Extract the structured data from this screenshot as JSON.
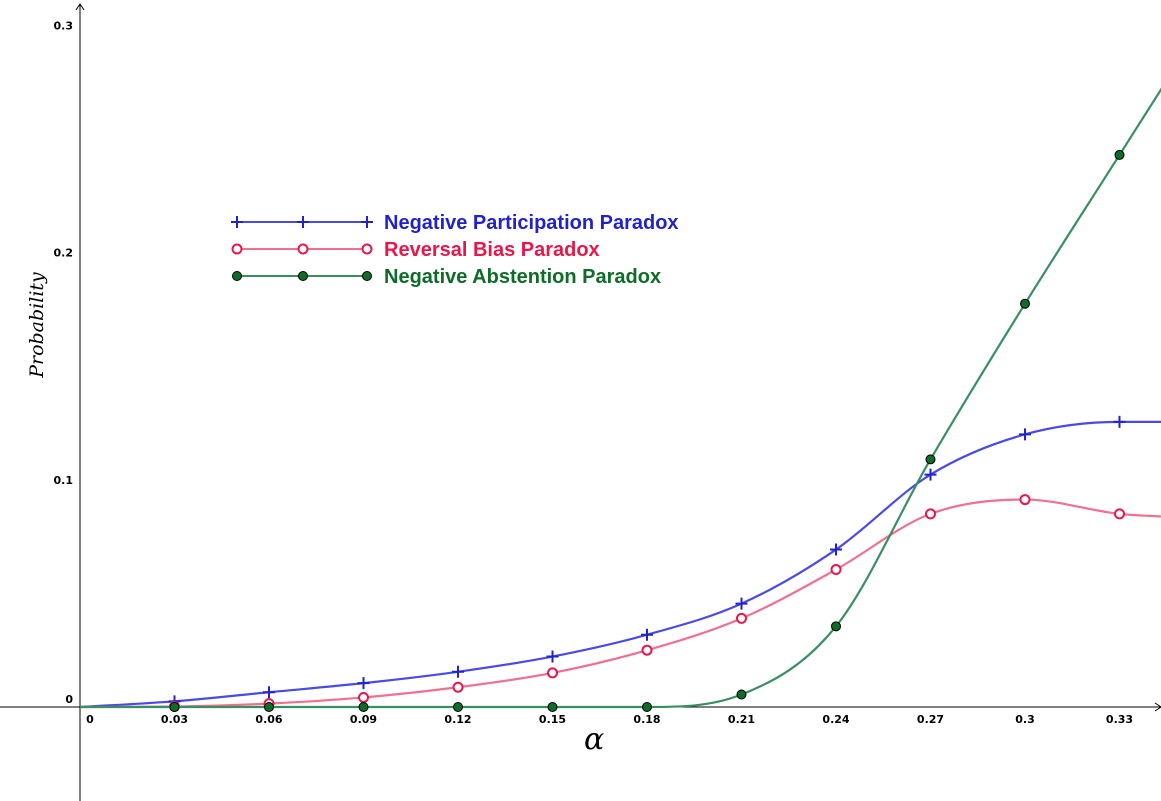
{
  "chart_data": {
    "type": "line",
    "xlabel": "α",
    "ylabel": "Probability",
    "xlim": [
      0,
      0.33
    ],
    "ylim": [
      0,
      0.3
    ],
    "x_ticks": [
      "0",
      "0.03",
      "0.06",
      "0.09",
      "0.12",
      "0.15",
      "0.18",
      "0.21",
      "0.24",
      "0.27",
      "0.3",
      "0.33"
    ],
    "y_ticks": [
      "0",
      "0.1",
      "0.2",
      "0.3"
    ],
    "legend_position": "upper-left",
    "x": [
      0,
      0.03,
      0.06,
      0.09,
      0.12,
      0.15,
      0.18,
      0.21,
      0.24,
      0.27,
      0.3,
      0.33
    ],
    "series": [
      {
        "name": "Negative Participation Paradox",
        "color": "#2222cc",
        "line_color": "#4a4ae8",
        "marker": "plus",
        "values": [
          0,
          0.0025,
          0.0065,
          0.0105,
          0.0155,
          0.0222,
          0.0318,
          0.0455,
          0.0693,
          0.1023,
          0.12,
          0.1255
        ]
      },
      {
        "name": "Reversal Bias Paradox",
        "color": "#e8174b",
        "line_color": "#f0708f",
        "marker": "circle",
        "values": [
          0,
          0.0002,
          0.0015,
          0.0042,
          0.0087,
          0.015,
          0.025,
          0.039,
          0.0605,
          0.085,
          0.0913,
          0.085
        ]
      },
      {
        "name": "Negative Abstention Paradox",
        "color": "#0e6b28",
        "line_color": "#3a8f62",
        "marker": "dot",
        "values": [
          0,
          0,
          0,
          0,
          0,
          0,
          0,
          0.0055,
          0.0355,
          0.109,
          0.1775,
          0.243
        ]
      }
    ]
  }
}
